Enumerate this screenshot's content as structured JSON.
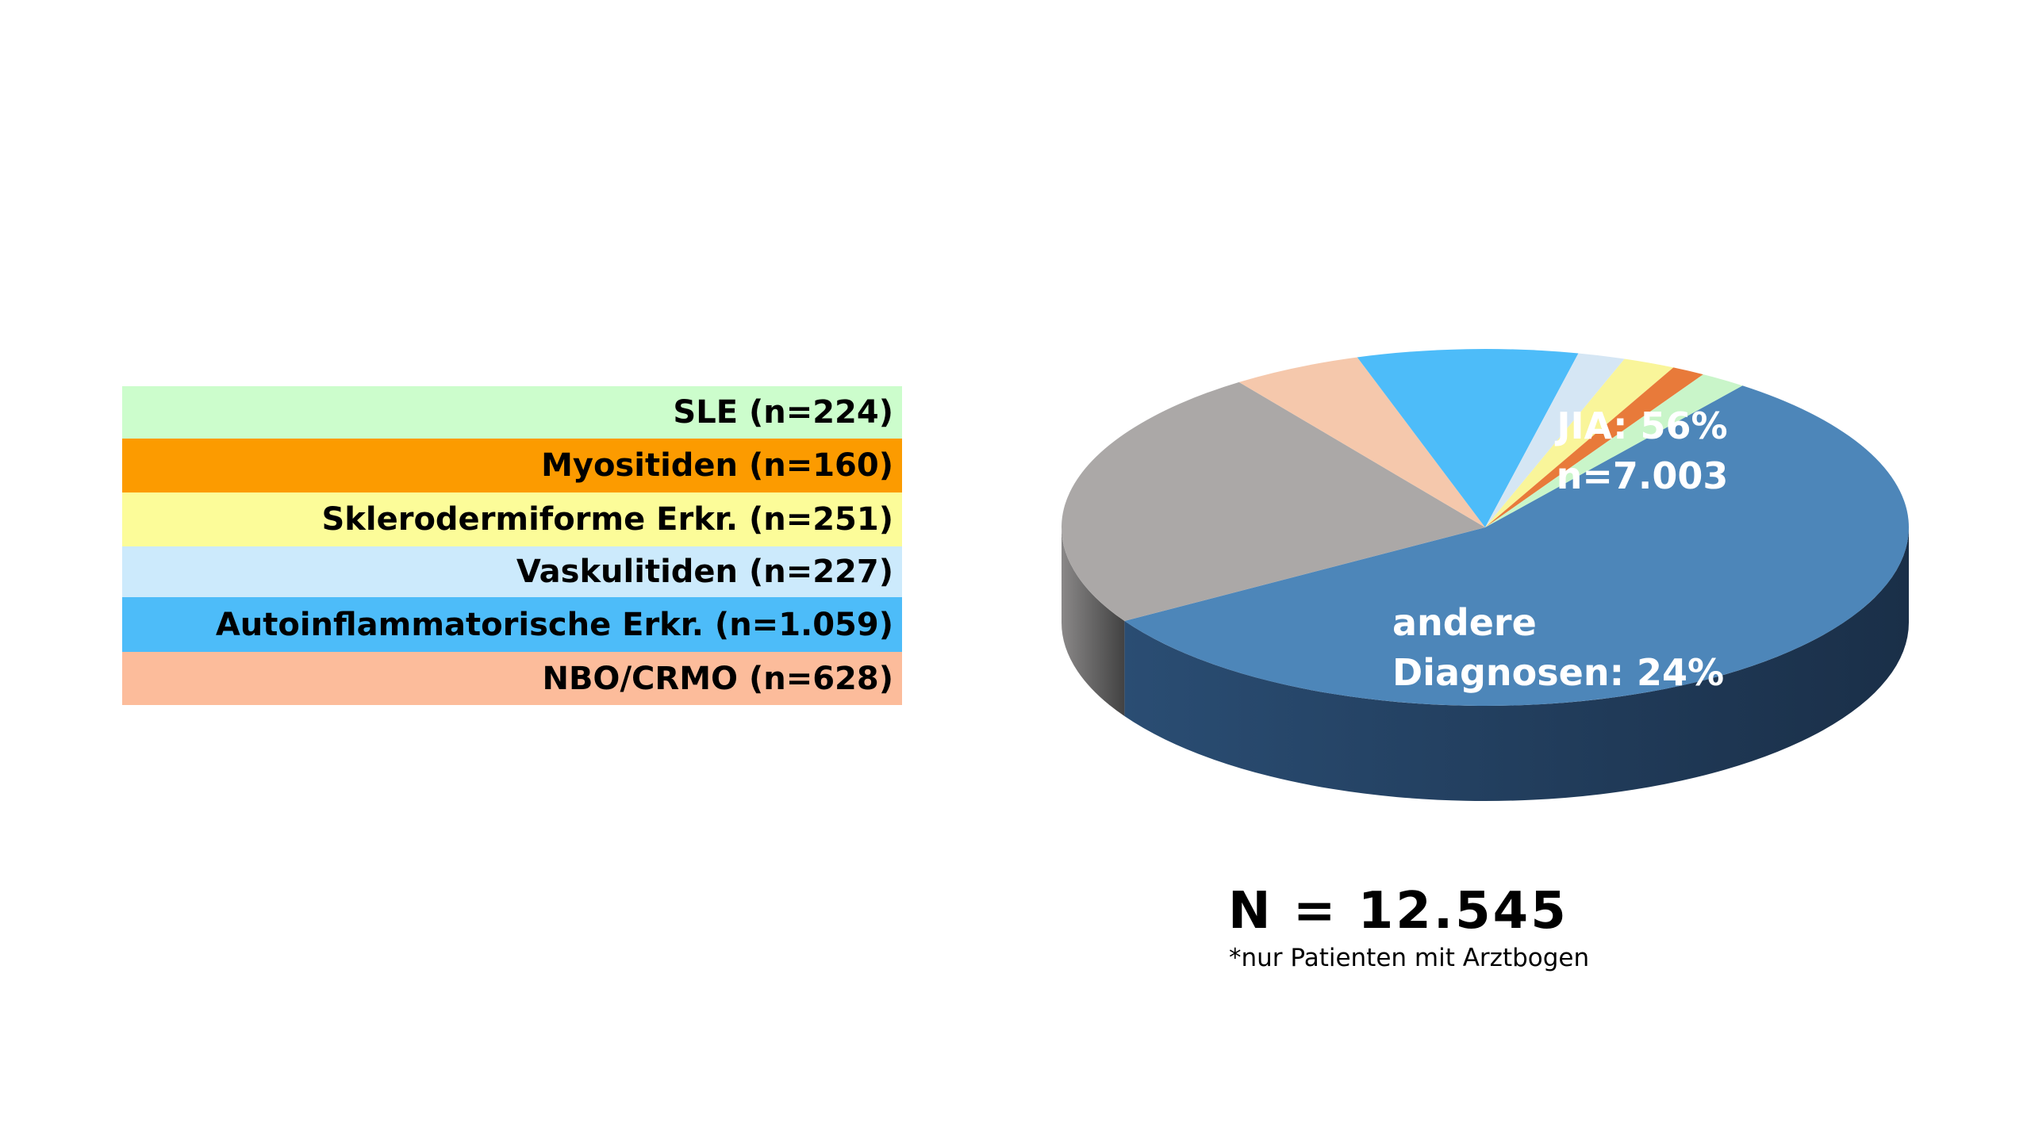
{
  "chart_data": {
    "type": "pie",
    "legend": [
      {
        "label": "SLE (n=224)",
        "color": "#ccfdcc"
      },
      {
        "label": "Myositiden (n=160)",
        "color": "#fc9b00"
      },
      {
        "label": "Sklerodermiforme Erkr. (n=251)",
        "color": "#fcfc99"
      },
      {
        "label": "Vaskulitiden (n=227)",
        "color": "#cceafc"
      },
      {
        "label": "Autoinflammatorische Erkr. (n=1.059)",
        "color": "#4dbcf9"
      },
      {
        "label": "NBO/CRMO (n=628)",
        "color": "#fcbc9b"
      }
    ],
    "slices": [
      {
        "name": "JIA",
        "value": 56,
        "color": "#4d86b9",
        "label_line1": "JIA: 56%",
        "label_line2": "n=7.003"
      },
      {
        "name": "andere Diagnosen",
        "value": 24,
        "color": "#aba8a7",
        "label_line1": "andere",
        "label_line2": "Diagnosen: 24%"
      },
      {
        "name": "NBO/CRMO",
        "value": 5.0,
        "color": "#f5c8ac"
      },
      {
        "name": "Autoinflammatorische Erkr.",
        "value": 8.44,
        "color": "#4dbcf9"
      },
      {
        "name": "Vaskulitiden",
        "value": 1.81,
        "color": "#d5e6f4"
      },
      {
        "name": "Sklerodermiforme Erkr.",
        "value": 2.0,
        "color": "#f9f59a"
      },
      {
        "name": "Myositiden",
        "value": 1.28,
        "color": "#e87a3a"
      },
      {
        "name": "SLE",
        "value": 1.79,
        "color": "#c9f5c9"
      }
    ],
    "total": "N = 12.545",
    "footnote": "*nur Patienten mit Arztbogen"
  }
}
